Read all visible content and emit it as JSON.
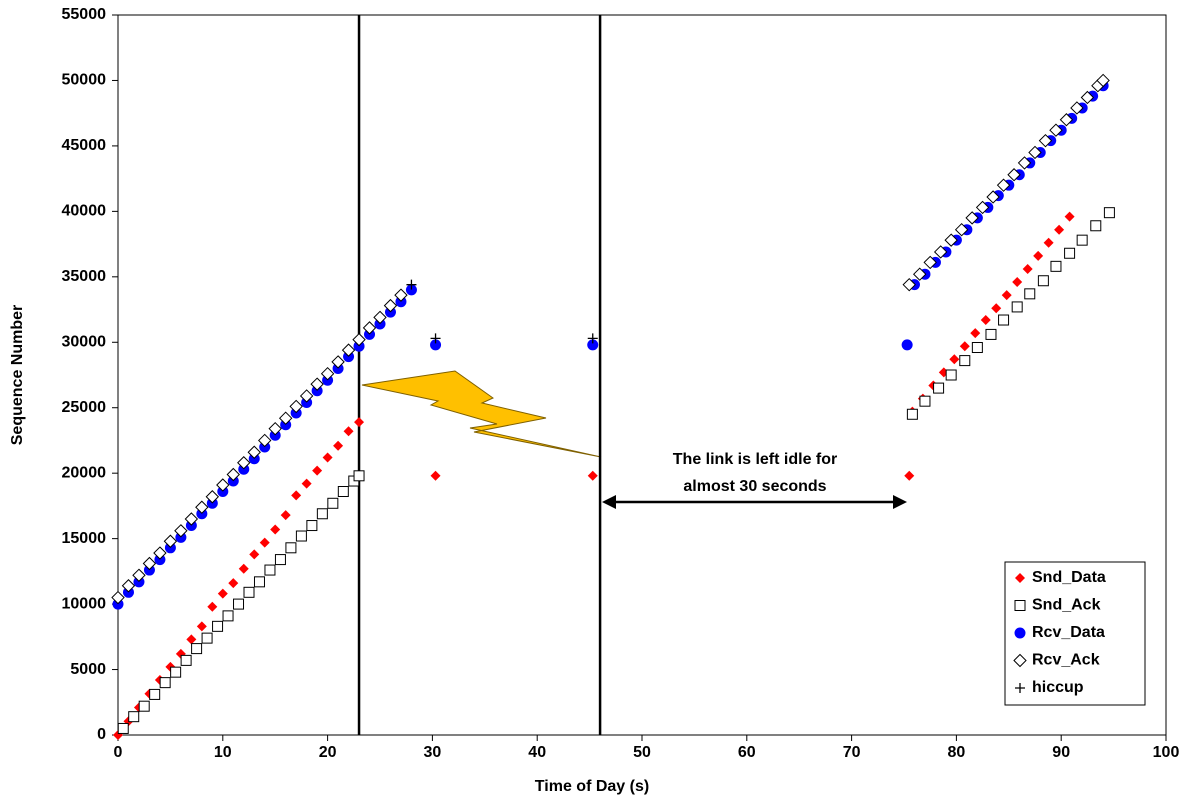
{
  "chart_data": {
    "type": "scatter",
    "x_label": "Time of Day (s)",
    "y_label": "Sequence Number",
    "xlim": [
      0,
      100
    ],
    "ylim": [
      0,
      55000
    ],
    "xticks": [
      0,
      10,
      20,
      30,
      40,
      50,
      60,
      70,
      80,
      90,
      100
    ],
    "yticks": [
      0,
      5000,
      10000,
      15000,
      20000,
      25000,
      30000,
      35000,
      40000,
      45000,
      50000,
      55000
    ],
    "vlines": [
      23,
      46
    ],
    "annotation": [
      "The link is left idle for",
      "almost 30 seconds"
    ],
    "legend": "bottom-right",
    "series": [
      {
        "name": "Snd_Data",
        "color": "#ff0000",
        "marker": "diamond-filled",
        "x": [
          0,
          1,
          2,
          3,
          4,
          5,
          6,
          7,
          8,
          9,
          10,
          11,
          12,
          13,
          14,
          15,
          16,
          17,
          18,
          19,
          20,
          21,
          22,
          23,
          30.3,
          45.3,
          75.5,
          75.8,
          76.8,
          77.8,
          78.8,
          79.8,
          80.8,
          81.8,
          82.8,
          83.8,
          84.8,
          85.8,
          86.8,
          87.8,
          88.8,
          89.8,
          90.8
        ],
        "values": [
          0,
          1050,
          2100,
          3150,
          4200,
          5200,
          6200,
          7300,
          8300,
          9800,
          10800,
          11600,
          12700,
          13800,
          14700,
          15700,
          16800,
          18300,
          19200,
          20200,
          21200,
          22100,
          23200,
          23900,
          19800,
          19800,
          19800,
          24700,
          25700,
          26700,
          27700,
          28700,
          29700,
          30700,
          31700,
          32600,
          33600,
          34600,
          35600,
          36600,
          37600,
          38600,
          39600
        ]
      },
      {
        "name": "Snd_Ack",
        "color": "#000000",
        "marker": "square-open",
        "x": [
          0.5,
          1.5,
          2.5,
          3.5,
          4.5,
          5.5,
          6.5,
          7.5,
          8.5,
          9.5,
          10.5,
          11.5,
          12.5,
          13.5,
          14.5,
          15.5,
          16.5,
          17.5,
          18.5,
          19.5,
          20.5,
          21.5,
          22.5,
          23,
          75.8,
          77,
          78.3,
          79.5,
          80.8,
          82,
          83.3,
          84.5,
          85.8,
          87,
          88.3,
          89.5,
          90.8,
          92,
          93.3,
          94.6
        ],
        "values": [
          500,
          1400,
          2200,
          3100,
          4000,
          4800,
          5700,
          6600,
          7400,
          8300,
          9100,
          10000,
          10900,
          11700,
          12600,
          13400,
          14300,
          15200,
          16000,
          16900,
          17700,
          18600,
          19400,
          19800,
          24500,
          25500,
          26500,
          27500,
          28600,
          29600,
          30600,
          31700,
          32700,
          33700,
          34700,
          35800,
          36800,
          37800,
          38900,
          39900
        ]
      },
      {
        "name": "Rcv_Data",
        "color": "#0000ff",
        "marker": "circle-filled",
        "x": [
          0,
          1,
          2,
          3,
          4,
          5,
          6,
          7,
          8,
          9,
          10,
          11,
          12,
          13,
          14,
          15,
          16,
          17,
          18,
          19,
          20,
          21,
          22,
          23,
          24,
          25,
          26,
          27,
          28,
          30.3,
          45.3,
          75.3,
          76,
          77,
          78,
          79,
          80,
          81,
          82,
          83,
          84,
          85,
          86,
          87,
          88,
          89,
          90,
          91,
          92,
          93,
          94
        ],
        "values": [
          10000,
          10900,
          11700,
          12600,
          13400,
          14300,
          15100,
          16000,
          16900,
          17700,
          18600,
          19400,
          20300,
          21100,
          22000,
          22900,
          23700,
          24600,
          25400,
          26300,
          27100,
          28000,
          28900,
          29700,
          30600,
          31400,
          32300,
          33100,
          34000,
          29800,
          29800,
          29800,
          34400,
          35200,
          36100,
          36900,
          37800,
          38600,
          39500,
          40300,
          41200,
          42000,
          42800,
          43700,
          44500,
          45400,
          46200,
          47100,
          47900,
          48800,
          49600
        ]
      },
      {
        "name": "Rcv_Ack",
        "color": "#000000",
        "marker": "diamond-open",
        "x": [
          0,
          1,
          2,
          3,
          4,
          5,
          6,
          7,
          8,
          9,
          10,
          11,
          12,
          13,
          14,
          15,
          16,
          17,
          18,
          19,
          20,
          21,
          22,
          23,
          24,
          25,
          26,
          27,
          75.5,
          76.5,
          77.5,
          78.5,
          79.5,
          80.5,
          81.5,
          82.5,
          83.5,
          84.5,
          85.5,
          86.5,
          87.5,
          88.5,
          89.5,
          90.5,
          91.5,
          92.5,
          93.5,
          94
        ],
        "values": [
          10500,
          11400,
          12200,
          13100,
          13900,
          14800,
          15600,
          16500,
          17400,
          18200,
          19100,
          19900,
          20800,
          21600,
          22500,
          23400,
          24200,
          25100,
          25900,
          26800,
          27600,
          28500,
          29400,
          30200,
          31100,
          31900,
          32800,
          33600,
          34400,
          35200,
          36100,
          36900,
          37800,
          38600,
          39500,
          40300,
          41100,
          42000,
          42800,
          43700,
          44500,
          45400,
          46200,
          47000,
          47900,
          48700,
          49600,
          50000
        ]
      },
      {
        "name": "hiccup",
        "color": "#000000",
        "marker": "plus",
        "x": [
          28,
          30.3,
          45.3
        ],
        "values": [
          34400,
          30300,
          30300
        ]
      }
    ]
  }
}
